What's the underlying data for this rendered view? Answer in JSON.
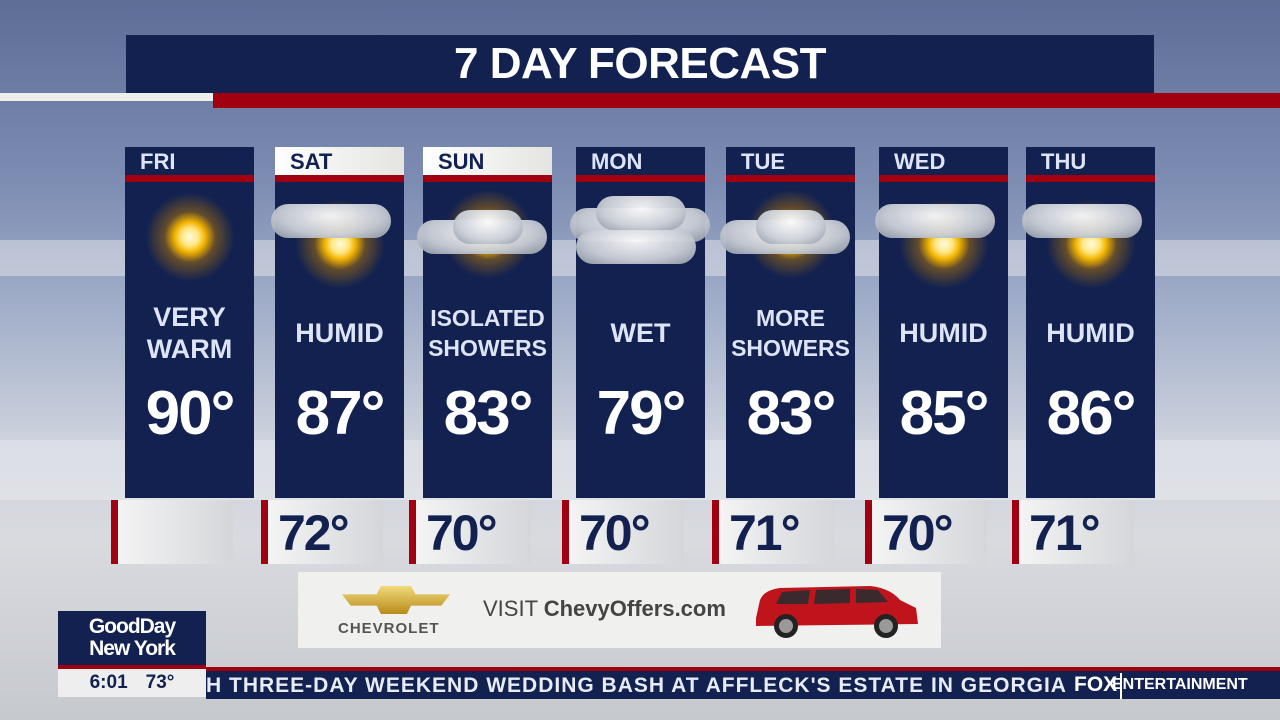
{
  "header": {
    "title": "7 DAY FORECAST"
  },
  "days": [
    {
      "day": "FRI",
      "icon": "sun",
      "condition": "VERY WARM",
      "high": "90°",
      "low": "",
      "header_style": "dark"
    },
    {
      "day": "SAT",
      "icon": "sun-with-clouds",
      "condition": "HUMID",
      "high": "87°",
      "low": "72°",
      "header_style": "light"
    },
    {
      "day": "SUN",
      "icon": "sun-behind-cloud",
      "condition": "ISOLATED SHOWERS",
      "high": "83°",
      "low": "70°",
      "header_style": "light"
    },
    {
      "day": "MON",
      "icon": "cloudy",
      "condition": "WET",
      "high": "79°",
      "low": "70°",
      "header_style": "dark"
    },
    {
      "day": "TUE",
      "icon": "sun-behind-cloud",
      "condition": "MORE SHOWERS",
      "high": "83°",
      "low": "71°",
      "header_style": "dark"
    },
    {
      "day": "WED",
      "icon": "sun-with-clouds",
      "condition": "HUMID",
      "high": "85°",
      "low": "70°",
      "header_style": "dark"
    },
    {
      "day": "THU",
      "icon": "sun-with-clouds",
      "condition": "HUMID",
      "high": "86°",
      "low": "71°",
      "header_style": "dark"
    }
  ],
  "ad": {
    "brand": "CHEVROLET",
    "text_prefix": "VISIT ",
    "text_site": "ChevyOffers.com"
  },
  "station": {
    "logo_line1": "GoodDay",
    "logo_line2": "New York",
    "time": "6:01",
    "temp": "73°"
  },
  "ticker": {
    "text": "H THREE-DAY WEEKEND WEDDING BASH AT AFFLECK'S ESTATE IN GEORGIA",
    "network": "FOX",
    "section": "ENTERTAINMENT"
  },
  "colors": {
    "navy": "#12214f",
    "red": "#a0000f"
  }
}
